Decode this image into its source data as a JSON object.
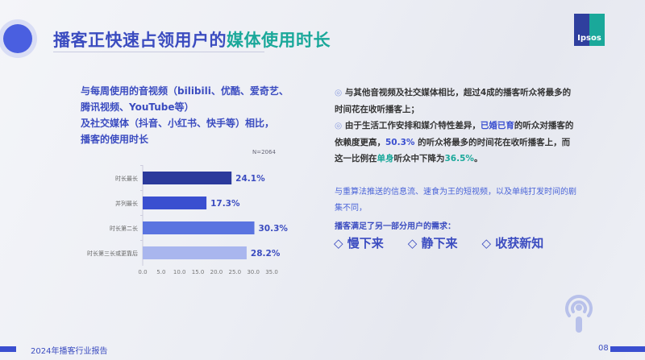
{
  "header": {
    "title_part1": "播客正快速占领用户的",
    "title_part2": "媒体使用时长",
    "logo_text": "Ipsos"
  },
  "question": [
    "与每周使用的音视频（bilibili、优酷、爱奇艺、",
    "腾讯视频、YouTube等）",
    "及社交媒体（抖音、小红书、快手等）相比，",
    "播客的使用时长"
  ],
  "chart_data": {
    "type": "bar",
    "orientation": "horizontal",
    "categories": [
      "时长最长",
      "并列最长",
      "时长第二长",
      "时长第三长或更靠后"
    ],
    "values": [
      24.1,
      17.3,
      30.3,
      28.2
    ],
    "data_labels": [
      "24.1%",
      "17.3%",
      "30.3%",
      "28.2%"
    ],
    "bar_colors": [
      "#2b3a9c",
      "#3a4fd0",
      "#5a74e0",
      "#a9b6ee"
    ],
    "xlim": [
      0,
      35
    ],
    "xticks": [
      "0.0",
      "5.0",
      "10.0",
      "15.0",
      "20.0",
      "25.0",
      "30.0",
      "35.0"
    ],
    "annotation": "N=2064",
    "grid": false
  },
  "right": {
    "p1": "与其他音视频及社交媒体相比，超过4成的播客听众将最多的时间花在收听播客上；",
    "p2a": "由于生活工作安排和媒介特性差异，",
    "p2b": "已婚已育",
    "p2c": "的听众对播客的依赖度更高，",
    "p2d": "50.3%",
    "p2e": " 的听众将最多的时间花在收听播客上，而这一比例在",
    "p2f": "单身",
    "p2g": "听众中下降为",
    "p2h": "36.5%",
    "p2i": "。",
    "p3": "与重算法推送的信息流、速食为王的短视频，以及单纯打发时间的剧集不同，",
    "p4": "播客满足了另一部分用户的需求：",
    "needs": [
      "◇ 慢下来",
      "◇ 静下来",
      "◇ 收获新知"
    ]
  },
  "footer": {
    "report": "2024年播客行业报告",
    "page": "08"
  }
}
